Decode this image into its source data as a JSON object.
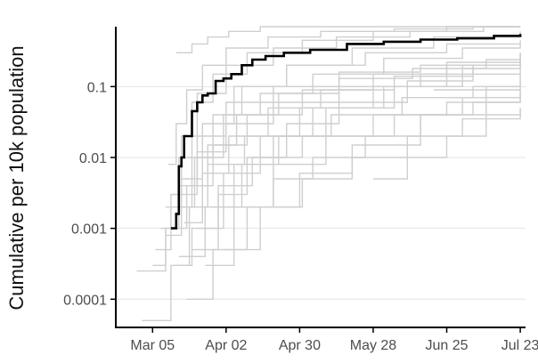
{
  "chart_data": {
    "type": "line",
    "title": "",
    "xlabel": "",
    "ylabel": "Cumulative per 10k population",
    "y_scale": "log",
    "ylim": [
      4e-05,
      0.7
    ],
    "xlim": [
      "2020-02-20",
      "2020-07-25"
    ],
    "x_ticks": [
      {
        "date": "2020-03-05",
        "label": "Mar 05"
      },
      {
        "date": "2020-04-02",
        "label": "Apr 02"
      },
      {
        "date": "2020-04-30",
        "label": "Apr 30"
      },
      {
        "date": "2020-05-28",
        "label": "May 28"
      },
      {
        "date": "2020-06-25",
        "label": "Jun 25"
      },
      {
        "date": "2020-07-23",
        "label": "Jul 23"
      }
    ],
    "y_ticks": [
      {
        "value": 0.1,
        "label": "0.1"
      },
      {
        "value": 0.01,
        "label": "0.01"
      },
      {
        "value": 0.001,
        "label": "0.001"
      },
      {
        "value": 0.0001,
        "label": "0.0001"
      }
    ],
    "grid": "horizontal",
    "colors": {
      "highlight": "#000000",
      "background_series": "#cfcfcf",
      "grid": "#e3e3e3"
    },
    "highlight_series": {
      "x": [
        "2020-03-12",
        "2020-03-14",
        "2020-03-15",
        "2020-03-16",
        "2020-03-17",
        "2020-03-18",
        "2020-03-20",
        "2020-03-22",
        "2020-03-24",
        "2020-03-26",
        "2020-03-29",
        "2020-04-01",
        "2020-04-04",
        "2020-04-08",
        "2020-04-12",
        "2020-04-17",
        "2020-04-24",
        "2020-05-04",
        "2020-05-18",
        "2020-06-01",
        "2020-06-15",
        "2020-06-29",
        "2020-07-13",
        "2020-07-23"
      ],
      "y": [
        0.001,
        0.0016,
        0.0075,
        0.01,
        0.02,
        0.02,
        0.045,
        0.06,
        0.075,
        0.08,
        0.12,
        0.13,
        0.15,
        0.2,
        0.24,
        0.27,
        0.3,
        0.33,
        0.4,
        0.43,
        0.46,
        0.48,
        0.52,
        0.55
      ]
    },
    "background_series": [
      {
        "x": [
          "2020-03-01",
          "2020-03-05",
          "2020-03-12",
          "2020-03-19",
          "2020-03-26",
          "2020-04-09",
          "2020-04-30",
          "2020-05-28",
          "2020-06-25",
          "2020-07-23"
        ],
        "y": [
          5e-05,
          5e-05,
          0.0003,
          0.002,
          0.008,
          0.02,
          0.05,
          0.1,
          0.2,
          0.3
        ]
      },
      {
        "x": [
          "2020-02-28",
          "2020-03-04",
          "2020-03-10",
          "2020-03-18",
          "2020-03-28",
          "2020-04-10",
          "2020-05-01",
          "2020-05-28",
          "2020-06-25",
          "2020-07-23"
        ],
        "y": [
          0.00025,
          0.00025,
          0.001,
          0.004,
          0.015,
          0.04,
          0.09,
          0.15,
          0.22,
          0.28
        ]
      },
      {
        "x": [
          "2020-03-08",
          "2020-03-12",
          "2020-03-16",
          "2020-03-22",
          "2020-04-02",
          "2020-04-20",
          "2020-05-14",
          "2020-06-11",
          "2020-07-09",
          "2020-07-23"
        ],
        "y": [
          0.001,
          0.003,
          0.02,
          0.08,
          0.2,
          0.35,
          0.5,
          0.6,
          0.7,
          0.7
        ]
      },
      {
        "x": [
          "2020-03-10",
          "2020-03-15",
          "2020-03-20",
          "2020-03-28",
          "2020-04-10",
          "2020-05-01",
          "2020-05-28",
          "2020-06-25",
          "2020-07-23"
        ],
        "y": [
          0.002,
          0.01,
          0.06,
          0.15,
          0.3,
          0.45,
          0.6,
          0.7,
          0.7
        ]
      },
      {
        "x": [
          "2020-03-06",
          "2020-03-12",
          "2020-03-20",
          "2020-04-01",
          "2020-04-15",
          "2020-05-05",
          "2020-06-01",
          "2020-07-01",
          "2020-07-23"
        ],
        "y": [
          0.0005,
          0.002,
          0.01,
          0.04,
          0.08,
          0.15,
          0.25,
          0.35,
          0.4
        ]
      },
      {
        "x": [
          "2020-03-13",
          "2020-03-20",
          "2020-03-30",
          "2020-04-12",
          "2020-05-01",
          "2020-05-28",
          "2020-06-25",
          "2020-07-23"
        ],
        "y": [
          0.0003,
          0.001,
          0.004,
          0.01,
          0.02,
          0.04,
          0.06,
          0.09
        ]
      },
      {
        "x": [
          "2020-03-15",
          "2020-03-25",
          "2020-04-05",
          "2020-04-20",
          "2020-05-10",
          "2020-06-05",
          "2020-07-01",
          "2020-07-23"
        ],
        "y": [
          0.0004,
          0.002,
          0.008,
          0.02,
          0.05,
          0.1,
          0.2,
          0.3
        ]
      },
      {
        "x": [
          "2020-03-18",
          "2020-03-28",
          "2020-04-10",
          "2020-04-30",
          "2020-05-20",
          "2020-06-15",
          "2020-07-10",
          "2020-07-23"
        ],
        "y": [
          0.0001,
          0.0005,
          0.002,
          0.006,
          0.015,
          0.04,
          0.1,
          0.15
        ]
      },
      {
        "x": [
          "2020-03-12",
          "2020-03-22",
          "2020-04-02",
          "2020-04-20",
          "2020-05-15",
          "2020-06-15",
          "2020-07-23"
        ],
        "y": [
          0.003,
          0.02,
          0.06,
          0.1,
          0.16,
          0.2,
          0.25
        ]
      },
      {
        "x": [
          "2020-03-15",
          "2020-03-21",
          "2020-03-28",
          "2020-04-08",
          "2020-04-25",
          "2020-05-20",
          "2020-06-20",
          "2020-07-23"
        ],
        "y": [
          0.002,
          0.01,
          0.04,
          0.1,
          0.2,
          0.35,
          0.5,
          0.6
        ]
      },
      {
        "x": [
          "2020-03-20",
          "2020-03-30",
          "2020-04-10",
          "2020-04-25",
          "2020-05-15",
          "2020-06-10",
          "2020-07-05",
          "2020-07-23"
        ],
        "y": [
          0.0005,
          0.003,
          0.01,
          0.03,
          0.06,
          0.12,
          0.2,
          0.25
        ]
      },
      {
        "x": [
          "2020-03-25",
          "2020-04-05",
          "2020-04-20",
          "2020-05-10",
          "2020-06-05",
          "2020-07-01",
          "2020-07-23"
        ],
        "y": [
          0.0003,
          0.002,
          0.008,
          0.02,
          0.04,
          0.07,
          0.1
        ]
      },
      {
        "x": [
          "2020-03-10",
          "2020-03-16",
          "2020-03-24",
          "2020-04-05",
          "2020-04-25",
          "2020-05-25",
          "2020-06-25",
          "2020-07-23"
        ],
        "y": [
          0.0008,
          0.005,
          0.03,
          0.1,
          0.2,
          0.3,
          0.4,
          0.45
        ]
      },
      {
        "x": [
          "2020-04-01",
          "2020-04-15",
          "2020-05-01",
          "2020-05-20",
          "2020-06-10",
          "2020-07-01",
          "2020-07-23"
        ],
        "y": [
          0.0005,
          0.002,
          0.005,
          0.01,
          0.02,
          0.035,
          0.05
        ]
      },
      {
        "x": [
          "2020-03-22",
          "2020-04-01",
          "2020-04-15",
          "2020-05-05",
          "2020-06-01",
          "2020-07-01",
          "2020-07-23"
        ],
        "y": [
          0.001,
          0.006,
          0.02,
          0.05,
          0.1,
          0.18,
          0.25
        ]
      },
      {
        "x": [
          "2020-03-05",
          "2020-03-10",
          "2020-03-15",
          "2020-03-22",
          "2020-04-02",
          "2020-04-20",
          "2020-05-15",
          "2020-06-15",
          "2020-07-23"
        ],
        "y": [
          0.0003,
          0.001,
          0.004,
          0.012,
          0.03,
          0.06,
          0.1,
          0.15,
          0.2
        ]
      },
      {
        "x": [
          "2020-03-17",
          "2020-03-24",
          "2020-04-03",
          "2020-04-18",
          "2020-05-08",
          "2020-06-05",
          "2020-07-05",
          "2020-07-23"
        ],
        "y": [
          0.0012,
          0.006,
          0.02,
          0.05,
          0.09,
          0.14,
          0.2,
          0.22
        ]
      },
      {
        "x": [
          "2020-03-28",
          "2020-04-08",
          "2020-04-22",
          "2020-05-12",
          "2020-06-08",
          "2020-07-05",
          "2020-07-23"
        ],
        "y": [
          0.002,
          0.008,
          0.02,
          0.04,
          0.07,
          0.1,
          0.12
        ]
      },
      {
        "x": [
          "2020-05-28",
          "2020-06-01",
          "2020-06-10",
          "2020-06-25",
          "2020-07-10",
          "2020-07-23"
        ],
        "y": [
          0.005,
          0.005,
          0.01,
          0.02,
          0.04,
          0.05
        ]
      },
      {
        "x": [
          "2020-03-14",
          "2020-03-16",
          "2020-03-20",
          "2020-03-26",
          "2020-04-03",
          "2020-04-15",
          "2020-05-01",
          "2020-05-20",
          "2020-06-10",
          "2020-07-05",
          "2020-07-23"
        ],
        "y": [
          0.3,
          0.3,
          0.4,
          0.5,
          0.6,
          0.7,
          0.7,
          0.7,
          0.7,
          0.7,
          0.7
        ]
      },
      {
        "x": [
          "2020-03-11",
          "2020-03-14",
          "2020-03-18",
          "2020-03-24",
          "2020-04-02",
          "2020-04-18",
          "2020-05-08",
          "2020-06-05",
          "2020-07-05",
          "2020-07-23"
        ],
        "y": [
          0.008,
          0.03,
          0.09,
          0.2,
          0.35,
          0.5,
          0.6,
          0.65,
          0.7,
          0.7
        ]
      },
      {
        "x": [
          "2020-04-10",
          "2020-04-20",
          "2020-05-05",
          "2020-05-25",
          "2020-06-15",
          "2020-07-05",
          "2020-07-23"
        ],
        "y": [
          0.002,
          0.005,
          0.01,
          0.02,
          0.04,
          0.06,
          0.08
        ]
      },
      {
        "x": [
          "2020-03-19",
          "2020-03-26",
          "2020-04-06",
          "2020-04-22",
          "2020-05-15",
          "2020-06-12",
          "2020-07-10",
          "2020-07-23"
        ],
        "y": [
          0.004,
          0.015,
          0.04,
          0.08,
          0.13,
          0.18,
          0.24,
          0.27
        ]
      },
      {
        "x": [
          "2020-06-20",
          "2020-07-23"
        ],
        "y": [
          0.09,
          0.09
        ]
      }
    ]
  }
}
